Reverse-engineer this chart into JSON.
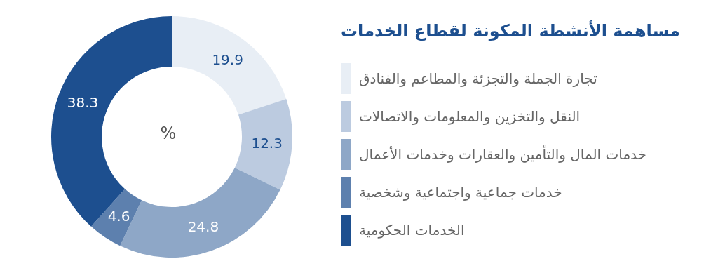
{
  "chart_data": {
    "type": "donut",
    "title": "مساهمة الأنشطة المكونة لقطاع الخدمات",
    "categories": [
      "تجارة الجملة والتجزئة والمطاعم والفنادق",
      "النقل والتخزين والمعلومات والاتصالات",
      "خدمات المال والتأمين والعقارات وخدمات الأعمال",
      "خدمات جماعية واجتماعية وشخصية",
      "الخدمات الحكومية"
    ],
    "values": [
      19.9,
      12.3,
      24.8,
      4.6,
      38.3
    ],
    "colors": [
      "#e8eef5",
      "#bccbe0",
      "#8ea7c7",
      "#5d80ae",
      "#1d4f8f"
    ],
    "annotations": [
      "%"
    ],
    "data_labels": true,
    "legend": "right"
  }
}
